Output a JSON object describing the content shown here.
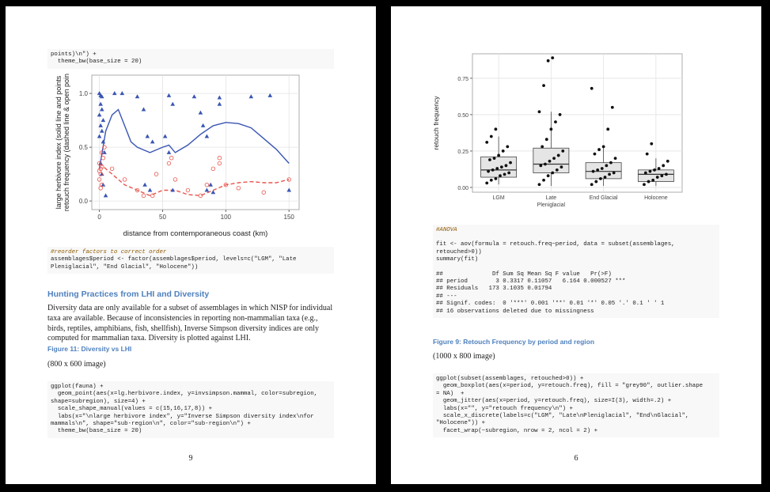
{
  "left_page": {
    "code_top": [
      "points)\\n\") +",
      "  theme_bw(base_size = 20)"
    ],
    "figure": {
      "type": "scatter",
      "ylabel": [
        "large herbivore index (solid line and points",
        "retouch frequency (dashed line & open poin"
      ],
      "xlabel": "distance from contemporaneous coast (km)",
      "xlim": [
        -6,
        158
      ],
      "xticks": [
        0,
        50,
        100,
        150
      ],
      "ylim": [
        -0.08,
        1.17
      ],
      "yticks": [
        {
          "value": 0,
          "label": "0.0"
        },
        0.5,
        {
          "value": 1,
          "label": "1.0"
        }
      ],
      "grid": true,
      "points": [
        {
          "marker": "triangle",
          "color": "#3a55b4",
          "x": [
            0,
            1,
            2,
            1,
            2,
            0,
            3,
            1,
            2,
            0,
            3,
            4,
            1,
            2,
            3,
            5,
            12,
            18,
            30,
            35,
            38,
            42,
            36,
            40,
            55,
            58,
            52,
            55,
            58,
            75,
            80,
            82,
            85,
            85,
            88,
            95,
            95,
            90,
            120,
            135,
            150
          ],
          "y": [
            1.0,
            0.98,
            0.97,
            0.9,
            0.85,
            0.8,
            0.75,
            0.7,
            0.65,
            0.6,
            0.55,
            0.45,
            0.35,
            0.25,
            0.15,
            0.05,
            1.0,
            1.0,
            0.97,
            0.85,
            0.6,
            0.55,
            0.15,
            0.1,
            0.98,
            0.9,
            0.6,
            0.45,
            0.1,
            0.97,
            0.82,
            0.7,
            0.6,
            0.1,
            0.15,
            0.96,
            0.9,
            0.08,
            0.97,
            0.98,
            0.1
          ]
        },
        {
          "marker": "open-circle",
          "color": "#e8554e",
          "x": [
            0,
            1,
            2,
            1,
            0,
            2,
            1,
            3,
            2,
            4,
            0,
            10,
            20,
            30,
            35,
            42,
            45,
            55,
            57,
            60,
            70,
            80,
            85,
            90,
            95,
            95,
            100,
            110,
            130,
            150
          ],
          "y": [
            0.35,
            0.3,
            0.32,
            0.25,
            0.2,
            0.15,
            0.12,
            0.4,
            0.45,
            0.5,
            0.28,
            0.3,
            0.2,
            0.1,
            0.05,
            0.05,
            0.25,
            0.35,
            0.4,
            0.2,
            0.1,
            0.05,
            0.15,
            0.3,
            0.35,
            0.4,
            0.15,
            0.12,
            0.08,
            0.2
          ]
        }
      ],
      "lines": [
        {
          "dash": "solid",
          "color": "#3a55b4",
          "x": [
            0,
            5,
            10,
            15,
            20,
            25,
            30,
            40,
            50,
            55,
            60,
            70,
            80,
            90,
            100,
            110,
            120,
            130,
            140,
            150
          ],
          "y": [
            0.3,
            0.65,
            0.8,
            0.85,
            0.7,
            0.55,
            0.5,
            0.45,
            0.5,
            0.52,
            0.45,
            0.52,
            0.62,
            0.7,
            0.73,
            0.72,
            0.68,
            0.58,
            0.48,
            0.35
          ]
        },
        {
          "dash": "dashed",
          "color": "#e8554e",
          "x": [
            0,
            5,
            10,
            20,
            30,
            40,
            50,
            60,
            70,
            80,
            90,
            100,
            110,
            120,
            130,
            140,
            150
          ],
          "y": [
            0.35,
            0.3,
            0.25,
            0.15,
            0.1,
            0.05,
            0.1,
            0.1,
            0.06,
            0.05,
            0.1,
            0.15,
            0.17,
            0.18,
            0.17,
            0.17,
            0.2
          ]
        }
      ]
    },
    "code_factor_comment": "#reorder factors to correct order",
    "code_factor": [
      "assemblages$period <- factor(assemblages$period, levels=c(\"LGM\", \"Late",
      "Pleniglacial\", \"End Glacial\", \"Holocene\"))"
    ],
    "heading": "Hunting Practices from LHI and Diversity",
    "paragraph": "Diversity data are only available for a subset of assemblages in which NISP for individual taxa are available. Because of inconsistencies in reporting non-mammalian taxa (e.g., birds, reptiles, amphibians, fish, shellfish), Inverse Simpson diversity indices are only computed for mammalian taxa. Diversity is plotted against LHI.",
    "figure_caption": "Figure 11: Diversity vs LHI",
    "image_size": "(800 x 600 image)",
    "code_plot": [
      "ggplot(fauna) +",
      "  geom_point(aes(x=lg.herbivore.index, y=invsimpson.mammal, color=subregion,",
      "shape=subregion), size=4) +",
      "  scale_shape_manual(values = c(15,16,17,8)) +",
      "  labs(x=\"\\nlarge herbivore index\", y=\"Inverse Simpson diversity index\\nfor",
      "mammals\\n\", shape=\"sub-region\\n\", color=\"sub-region\\n\") +",
      "  theme_bw(base_size = 20)"
    ],
    "page_number": "9"
  },
  "right_page": {
    "figure": {
      "type": "box",
      "ylabel": "retouch frequency",
      "categories": [
        "LGM",
        "Late\nPleniglacial",
        "End Glacial",
        "Holocene"
      ],
      "ylim": [
        -0.033,
        0.918
      ],
      "yticks": [
        {
          "value": 0,
          "label": "0.00"
        },
        0.25,
        {
          "value": 0.5,
          "label": "0.50"
        },
        0.75
      ],
      "grid": true,
      "fill": "#e5e5e5",
      "boxes": [
        {
          "low": 0.02,
          "q1": 0.07,
          "median": 0.12,
          "q3": 0.21,
          "high": 0.35,
          "points": [
            0.03,
            0.05,
            0.06,
            0.08,
            0.09,
            0.1,
            0.11,
            0.12,
            0.13,
            0.14,
            0.15,
            0.17,
            0.19,
            0.2,
            0.22,
            0.25,
            0.28,
            0.31,
            0.35,
            0.4
          ]
        },
        {
          "low": 0.01,
          "q1": 0.1,
          "median": 0.16,
          "q3": 0.27,
          "high": 0.52,
          "points": [
            0.02,
            0.05,
            0.08,
            0.1,
            0.12,
            0.14,
            0.15,
            0.16,
            0.18,
            0.2,
            0.22,
            0.25,
            0.28,
            0.33,
            0.4,
            0.45,
            0.5,
            0.52,
            0.7,
            0.87,
            0.89
          ]
        },
        {
          "low": 0.01,
          "q1": 0.06,
          "median": 0.11,
          "q3": 0.17,
          "high": 0.28,
          "points": [
            0.02,
            0.04,
            0.06,
            0.07,
            0.09,
            0.1,
            0.11,
            0.12,
            0.13,
            0.15,
            0.17,
            0.2,
            0.23,
            0.26,
            0.28,
            0.4,
            0.55,
            0.68
          ]
        },
        {
          "low": 0.01,
          "q1": 0.04,
          "median": 0.09,
          "q3": 0.12,
          "high": 0.2,
          "points": [
            0.02,
            0.04,
            0.05,
            0.07,
            0.08,
            0.09,
            0.1,
            0.11,
            0.12,
            0.13,
            0.15,
            0.18,
            0.23,
            0.3
          ]
        }
      ]
    },
    "anova_comment": "#ANOVA",
    "anova_code": [
      "fit <- aov(formula = retouch.freq~period, data = subset(assemblages,",
      "retouched>0))",
      "summary(fit)"
    ],
    "anova_output": [
      "##              Df Sum Sq Mean Sq F value   Pr(>F)",
      "## period        3 0.3317 0.11057   6.164 0.000527 ***",
      "## Residuals   173 3.1035 0.01794",
      "## ---",
      "## Signif. codes:  0 '***' 0.001 '**' 0.01 '*' 0.05 '.' 0.1 ' ' 1",
      "## 16 observations deleted due to missingness"
    ],
    "figure_caption": "Figure 9: Retouch Frequency by period and region",
    "image_size": "(1000 x 800 image)",
    "code_plot": [
      "ggplot(subset(assemblages, retouched>0)) +",
      "  geom_boxplot(aes(x=period, y=retouch.freq), fill = \"grey90\", outlier.shape",
      "= NA)  +",
      "  geom_jitter(aes(x=period, y=retouch.freq), size=I(3), width=.2) +",
      "  labs(x=\"\", y=\"retouch frequency\\n\") +",
      "  scale_x_discrete(labels=c(\"LGM\", \"Late\\nPleniglacial\", \"End\\nGlacial\",",
      "\"Holocene\")) +",
      "  facet_wrap(~subregion, nrow = 2, ncol = 2) +"
    ],
    "page_number": "6"
  }
}
